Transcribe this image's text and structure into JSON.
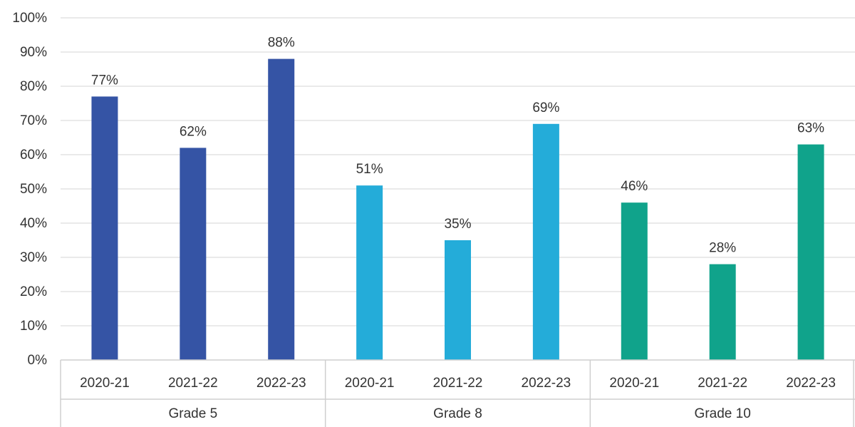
{
  "chart_data": {
    "type": "bar",
    "title": "",
    "ylabel": "",
    "xlabel": "",
    "ylim": [
      0,
      100
    ],
    "y_ticks": [
      "0%",
      "10%",
      "20%",
      "30%",
      "40%",
      "50%",
      "60%",
      "70%",
      "80%",
      "90%",
      "100%"
    ],
    "grid": true,
    "groups": [
      {
        "name": "Grade 5",
        "color": "#3554a5",
        "categories": [
          "2020-21",
          "2021-22",
          "2022-23"
        ],
        "values": [
          77,
          62,
          88
        ],
        "labels": [
          "77%",
          "62%",
          "88%"
        ]
      },
      {
        "name": "Grade 8",
        "color": "#24acd9",
        "categories": [
          "2020-21",
          "2021-22",
          "2022-23"
        ],
        "values": [
          51,
          35,
          69
        ],
        "labels": [
          "51%",
          "35%",
          "69%"
        ]
      },
      {
        "name": "Grade 10",
        "color": "#10a38b",
        "categories": [
          "2020-21",
          "2021-22",
          "2022-23"
        ],
        "values": [
          46,
          28,
          63
        ],
        "labels": [
          "46%",
          "28%",
          "63%"
        ]
      }
    ]
  }
}
